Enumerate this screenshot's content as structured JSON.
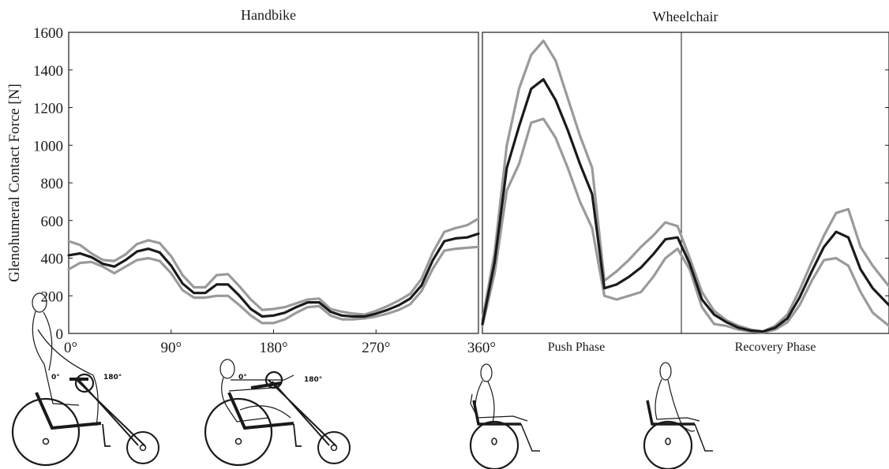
{
  "colors": {
    "mean": "#1a1a1a",
    "band": "#9a9a9a",
    "axis": "#1a1a1a"
  },
  "figure": {
    "ylabel": "Glenohumeral Contact Force [N]",
    "phases": [
      "Push Phase",
      "Recovery Phase"
    ]
  },
  "chart_data": [
    {
      "type": "line",
      "title": "Handbike",
      "xlabel": "",
      "ylabel": "Glenohumeral Contact Force [N]",
      "x_ticks": [
        "0°",
        "90°",
        "180°",
        "270°",
        "360°"
      ],
      "y_ticks": [
        "0",
        "200",
        "400",
        "600",
        "800",
        "1000",
        "1200",
        "1400",
        "1600"
      ],
      "xlim": [
        0,
        360
      ],
      "ylim": [
        0,
        1600
      ],
      "x": [
        0,
        10,
        20,
        30,
        40,
        50,
        60,
        70,
        80,
        90,
        100,
        110,
        120,
        130,
        140,
        150,
        160,
        170,
        180,
        190,
        200,
        210,
        220,
        230,
        240,
        250,
        260,
        270,
        280,
        290,
        300,
        310,
        320,
        330,
        340,
        350,
        360
      ],
      "series": [
        {
          "role": "upper",
          "values": [
            490,
            470,
            425,
            390,
            385,
            420,
            475,
            495,
            480,
            410,
            310,
            245,
            245,
            310,
            315,
            250,
            180,
            125,
            130,
            140,
            160,
            180,
            185,
            130,
            115,
            105,
            100,
            120,
            145,
            175,
            210,
            290,
            430,
            540,
            560,
            575,
            610
          ]
        },
        {
          "role": "mean",
          "values": [
            415,
            425,
            405,
            370,
            355,
            390,
            435,
            450,
            430,
            360,
            265,
            215,
            215,
            260,
            260,
            200,
            130,
            90,
            95,
            110,
            140,
            165,
            165,
            115,
            95,
            90,
            90,
            105,
            125,
            150,
            185,
            255,
            390,
            490,
            505,
            510,
            530
          ]
        },
        {
          "role": "lower",
          "values": [
            340,
            375,
            380,
            355,
            320,
            355,
            390,
            400,
            385,
            320,
            230,
            190,
            190,
            200,
            200,
            150,
            95,
            55,
            55,
            75,
            110,
            140,
            145,
            95,
            75,
            75,
            80,
            90,
            105,
            125,
            155,
            225,
            345,
            440,
            450,
            455,
            460
          ]
        }
      ]
    },
    {
      "type": "line",
      "title": "Wheelchair",
      "xlabel": "",
      "ylabel": "",
      "xlim": [
        0,
        100
      ],
      "ylim": [
        0,
        1600
      ],
      "phase_split": 49,
      "x": [
        0,
        3,
        6,
        9,
        12,
        15,
        18,
        21,
        24,
        27,
        30,
        33,
        36,
        39,
        42,
        45,
        48,
        51,
        54,
        57,
        60,
        63,
        66,
        69,
        72,
        75,
        78,
        81,
        84,
        87,
        90,
        93,
        96,
        100
      ],
      "series": [
        {
          "role": "upper",
          "values": [
            70,
            430,
            1000,
            1300,
            1480,
            1555,
            1450,
            1250,
            1050,
            880,
            280,
            330,
            390,
            460,
            520,
            590,
            570,
            400,
            220,
            120,
            70,
            40,
            20,
            10,
            40,
            100,
            230,
            380,
            520,
            640,
            660,
            460,
            360,
            250
          ]
        },
        {
          "role": "mean",
          "values": [
            50,
            380,
            880,
            1100,
            1300,
            1350,
            1240,
            1080,
            900,
            740,
            240,
            260,
            300,
            350,
            420,
            500,
            510,
            370,
            180,
            100,
            60,
            30,
            15,
            10,
            30,
            80,
            190,
            330,
            460,
            540,
            510,
            340,
            240,
            150
          ]
        },
        {
          "role": "lower",
          "values": [
            40,
            320,
            760,
            900,
            1120,
            1140,
            1040,
            880,
            700,
            560,
            200,
            180,
            200,
            220,
            300,
            400,
            450,
            340,
            140,
            50,
            40,
            20,
            10,
            5,
            20,
            60,
            150,
            280,
            390,
            400,
            360,
            220,
            110,
            40
          ]
        }
      ]
    }
  ]
}
